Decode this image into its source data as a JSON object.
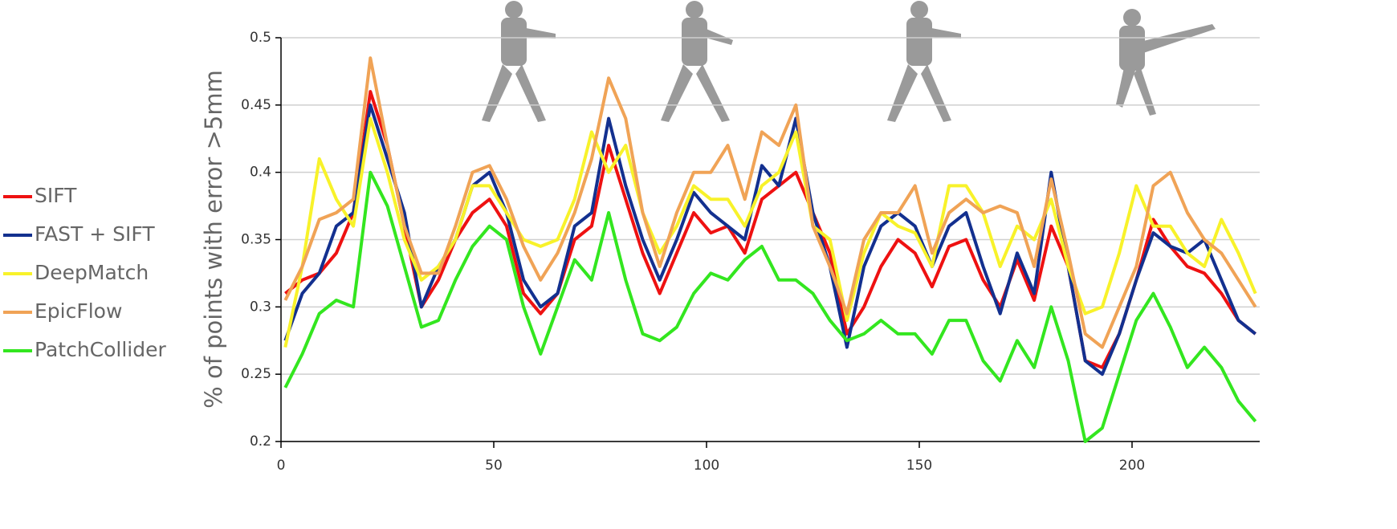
{
  "chart_data": {
    "type": "line",
    "y_label": "% of points with error >5mm",
    "x": [
      1,
      5,
      9,
      13,
      17,
      21,
      25,
      29,
      33,
      37,
      41,
      45,
      49,
      53,
      57,
      61,
      65,
      69,
      73,
      77,
      81,
      85,
      89,
      93,
      97,
      101,
      105,
      109,
      113,
      117,
      121,
      125,
      129,
      133,
      137,
      141,
      145,
      149,
      153,
      157,
      161,
      165,
      169,
      173,
      177,
      181,
      185,
      189,
      193,
      197,
      201,
      205,
      209,
      213,
      217,
      221,
      225,
      229
    ],
    "series": [
      {
        "name": "SIFT",
        "color": "#ee1111",
        "values": [
          0.31,
          0.32,
          0.325,
          0.34,
          0.37,
          0.46,
          0.42,
          0.36,
          0.3,
          0.32,
          0.35,
          0.37,
          0.38,
          0.36,
          0.31,
          0.295,
          0.31,
          0.35,
          0.36,
          0.42,
          0.38,
          0.34,
          0.31,
          0.34,
          0.37,
          0.355,
          0.36,
          0.34,
          0.38,
          0.39,
          0.4,
          0.37,
          0.34,
          0.28,
          0.3,
          0.33,
          0.35,
          0.34,
          0.315,
          0.345,
          0.35,
          0.32,
          0.3,
          0.335,
          0.305,
          0.36,
          0.33,
          0.26,
          0.255,
          0.28,
          0.32,
          0.365,
          0.345,
          0.33,
          0.325,
          0.31,
          0.29,
          0.28
        ]
      },
      {
        "name": "FAST + SIFT",
        "color": "#13308f",
        "values": [
          0.275,
          0.31,
          0.325,
          0.36,
          0.37,
          0.45,
          0.41,
          0.37,
          0.3,
          0.33,
          0.35,
          0.39,
          0.4,
          0.37,
          0.32,
          0.3,
          0.31,
          0.36,
          0.37,
          0.44,
          0.39,
          0.35,
          0.32,
          0.35,
          0.385,
          0.37,
          0.36,
          0.35,
          0.405,
          0.39,
          0.44,
          0.37,
          0.33,
          0.27,
          0.33,
          0.36,
          0.37,
          0.36,
          0.33,
          0.36,
          0.37,
          0.33,
          0.295,
          0.34,
          0.31,
          0.4,
          0.33,
          0.26,
          0.25,
          0.28,
          0.32,
          0.355,
          0.345,
          0.34,
          0.35,
          0.32,
          0.29,
          0.28
        ]
      },
      {
        "name": "DeepMatch",
        "color": "#f8f22a",
        "values": [
          0.27,
          0.33,
          0.41,
          0.38,
          0.36,
          0.44,
          0.4,
          0.35,
          0.32,
          0.33,
          0.35,
          0.39,
          0.39,
          0.37,
          0.35,
          0.345,
          0.35,
          0.38,
          0.43,
          0.4,
          0.42,
          0.37,
          0.34,
          0.36,
          0.39,
          0.38,
          0.38,
          0.36,
          0.39,
          0.4,
          0.43,
          0.36,
          0.35,
          0.29,
          0.34,
          0.37,
          0.36,
          0.355,
          0.33,
          0.39,
          0.39,
          0.37,
          0.33,
          0.36,
          0.35,
          0.38,
          0.33,
          0.295,
          0.3,
          0.34,
          0.39,
          0.36,
          0.36,
          0.34,
          0.33,
          0.365,
          0.34,
          0.31
        ]
      },
      {
        "name": "EpicFlow",
        "color": "#f0a356",
        "values": [
          0.305,
          0.33,
          0.365,
          0.37,
          0.38,
          0.485,
          0.42,
          0.36,
          0.325,
          0.325,
          0.36,
          0.4,
          0.405,
          0.38,
          0.345,
          0.32,
          0.34,
          0.37,
          0.41,
          0.47,
          0.44,
          0.37,
          0.33,
          0.37,
          0.4,
          0.4,
          0.42,
          0.38,
          0.43,
          0.42,
          0.45,
          0.36,
          0.33,
          0.295,
          0.35,
          0.37,
          0.37,
          0.39,
          0.34,
          0.37,
          0.38,
          0.37,
          0.375,
          0.37,
          0.33,
          0.395,
          0.34,
          0.28,
          0.27,
          0.3,
          0.33,
          0.39,
          0.4,
          0.37,
          0.35,
          0.34,
          0.32,
          0.3
        ]
      },
      {
        "name": "PatchCollider",
        "color": "#33e61f",
        "values": [
          0.24,
          0.265,
          0.295,
          0.305,
          0.3,
          0.4,
          0.375,
          0.33,
          0.285,
          0.29,
          0.32,
          0.345,
          0.36,
          0.35,
          0.3,
          0.265,
          0.3,
          0.335,
          0.32,
          0.37,
          0.32,
          0.28,
          0.275,
          0.285,
          0.31,
          0.325,
          0.32,
          0.335,
          0.345,
          0.32,
          0.32,
          0.31,
          0.29,
          0.275,
          0.28,
          0.29,
          0.28,
          0.28,
          0.265,
          0.29,
          0.29,
          0.26,
          0.245,
          0.275,
          0.255,
          0.3,
          0.26,
          0.2,
          0.21,
          0.25,
          0.29,
          0.31,
          0.285,
          0.255,
          0.27,
          0.255,
          0.23,
          0.215
        ]
      }
    ],
    "xlim": [
      0,
      230
    ],
    "xticks": [
      0,
      50,
      100,
      150,
      200
    ],
    "ylim": [
      0.2,
      0.5
    ],
    "yticks": [
      0.2,
      0.25,
      0.3,
      0.35,
      0.4,
      0.45,
      0.5
    ],
    "grid": true,
    "legend": "left"
  }
}
